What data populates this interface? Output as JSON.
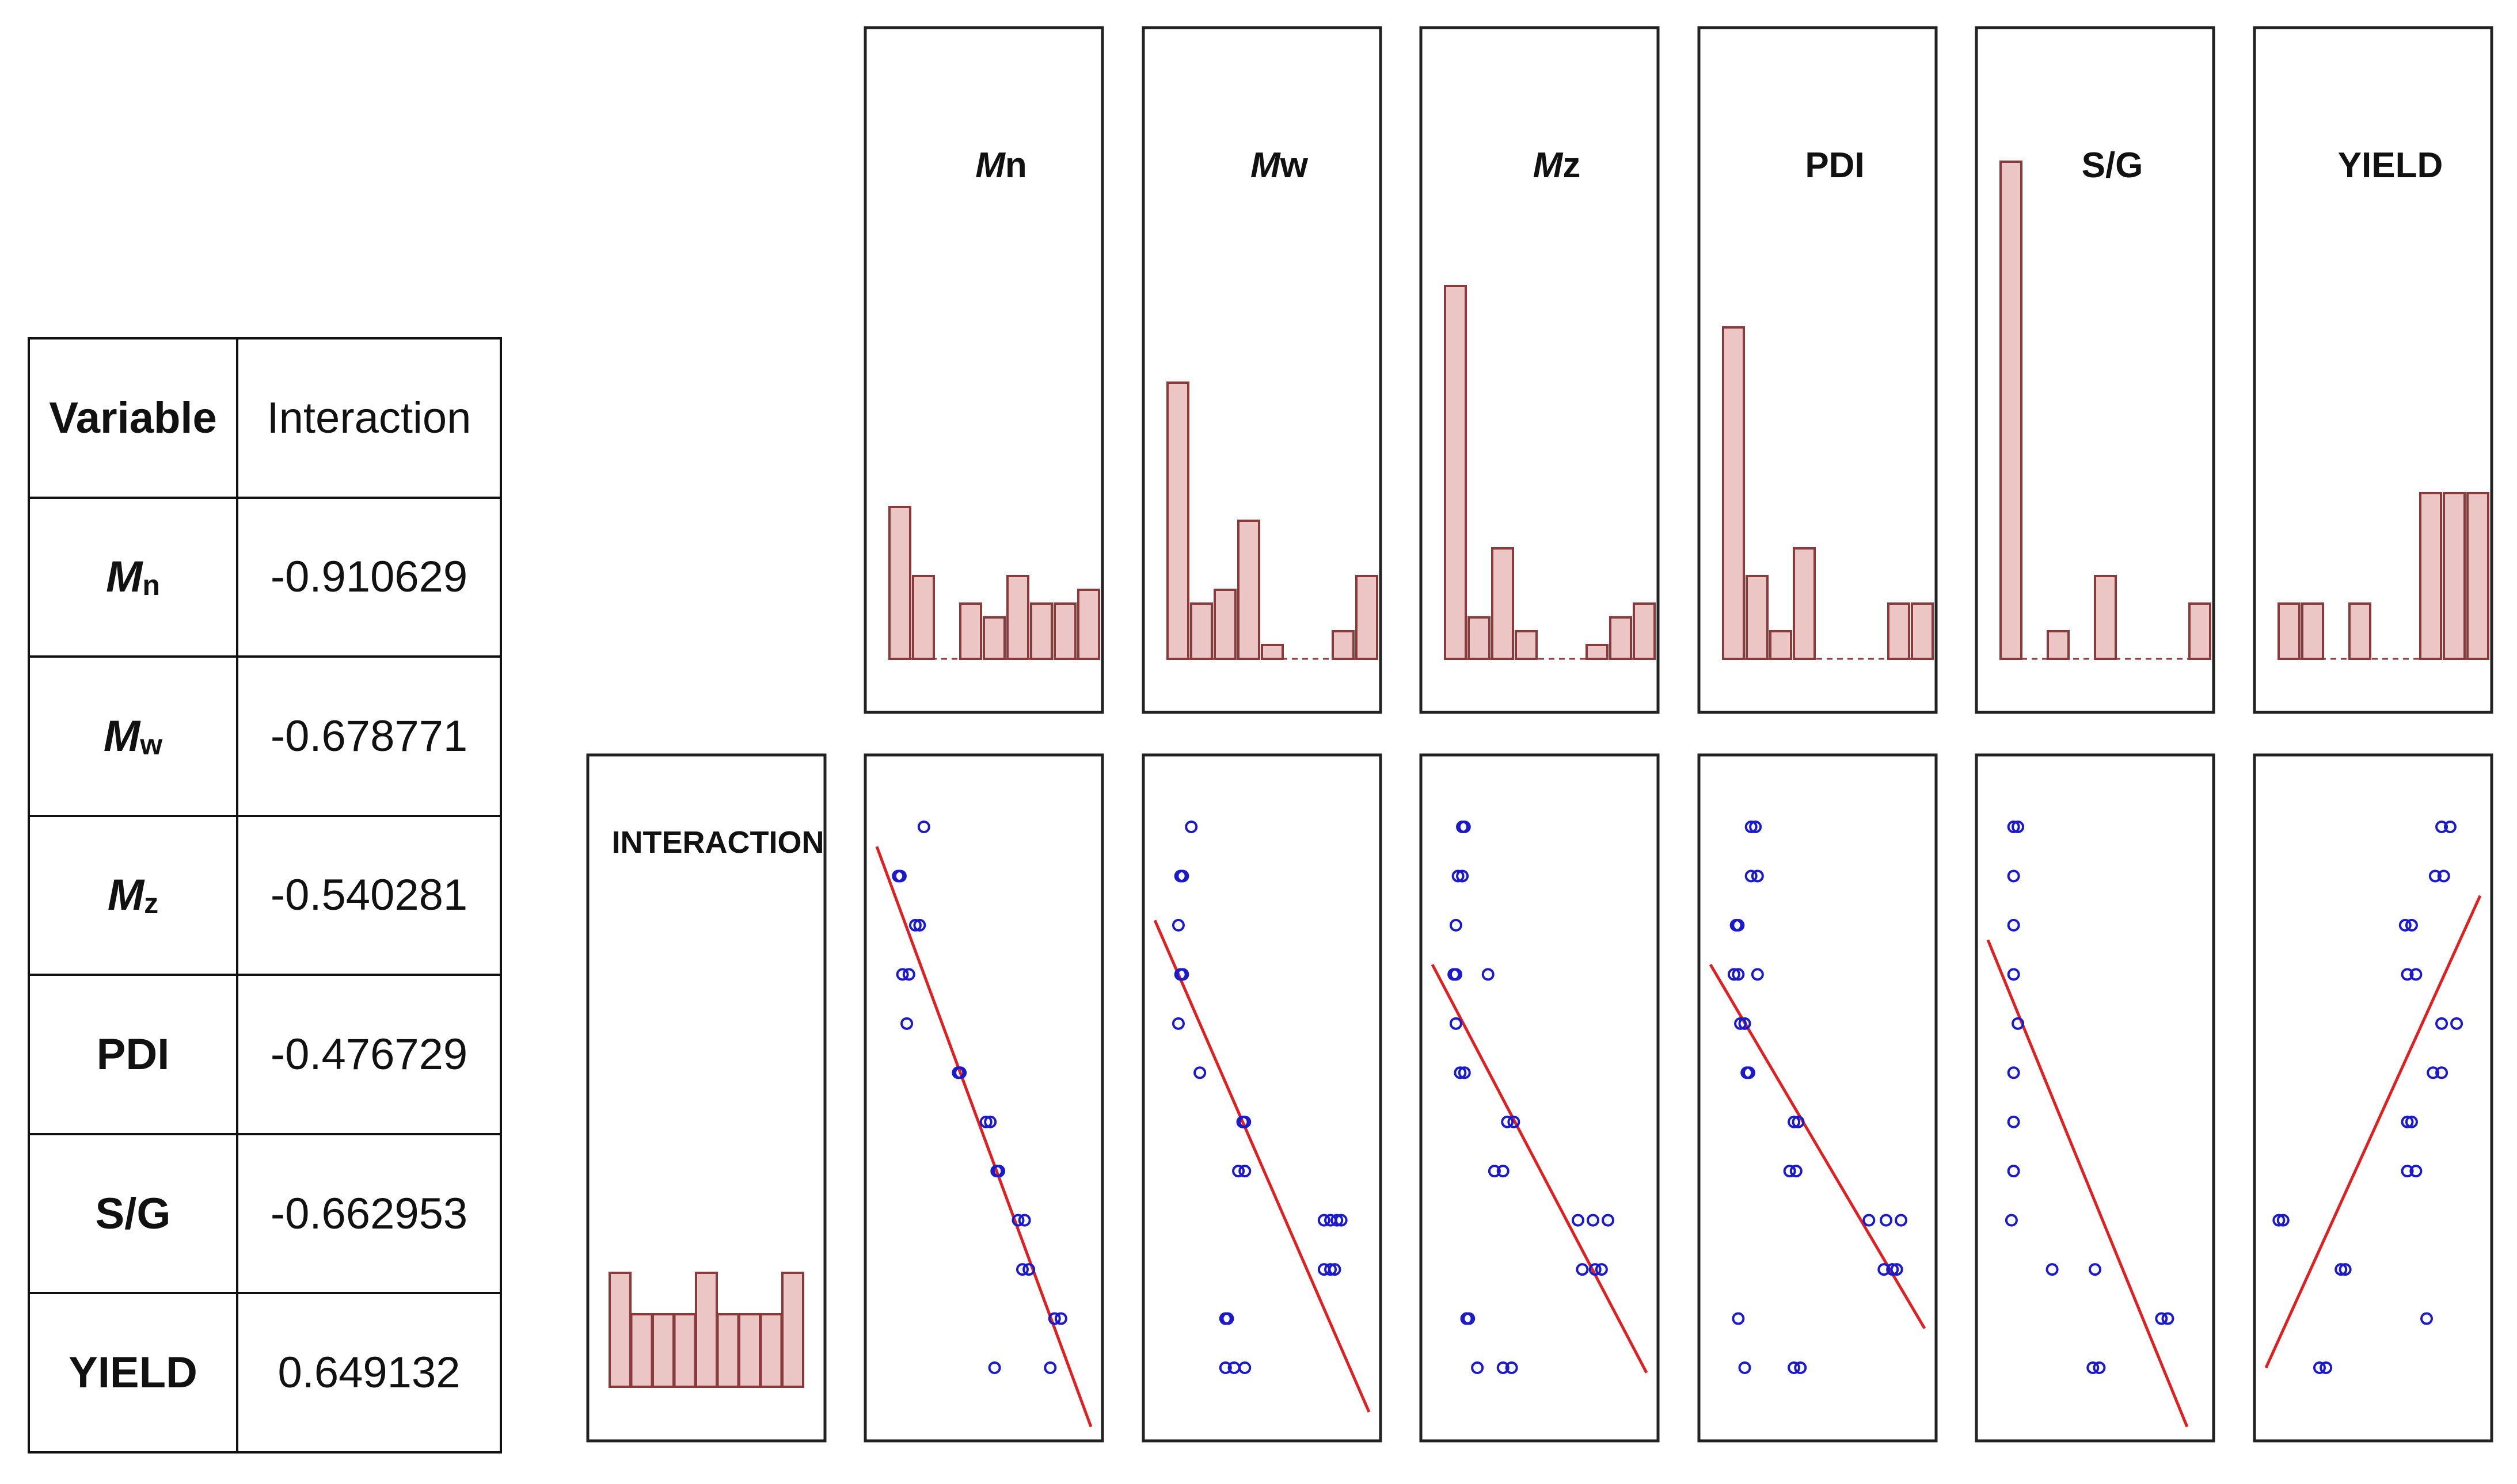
{
  "table": {
    "header": {
      "variable": "Variable",
      "interaction": "Interaction"
    },
    "rows": [
      {
        "prefix": "M",
        "sub": "n",
        "plain": "",
        "value": "-0.910629"
      },
      {
        "prefix": "M",
        "sub": "w",
        "plain": "",
        "value": "-0.678771"
      },
      {
        "prefix": "M",
        "sub": "z",
        "plain": "",
        "value": "-0.540281"
      },
      {
        "prefix": "",
        "sub": "",
        "plain": "PDI",
        "value": "-0.476729"
      },
      {
        "prefix": "",
        "sub": "",
        "plain": "S/G",
        "value": "-0.662953"
      },
      {
        "prefix": "",
        "sub": "",
        "plain": "YIELD",
        "value": "0.649132"
      }
    ]
  },
  "colors": {
    "bar_fill": "#ecc5c5",
    "bar_stroke": "#8a3a3a",
    "point": "#1a1acc",
    "fit_line": "#e02020",
    "panel_border": "#222222"
  },
  "chart_data": [
    {
      "type": "bar",
      "panel": "histograms",
      "series": [
        {
          "title_prefix": "M",
          "title_suffix": "n",
          "values": [
            0.55,
            0.3,
            0,
            0.2,
            0.15,
            0.3,
            0.2,
            0.2,
            0.25
          ]
        },
        {
          "title_prefix": "M",
          "title_suffix": "w",
          "values": [
            1.0,
            0.2,
            0.25,
            0.5,
            0.05,
            0,
            0,
            0.1,
            0.3
          ]
        },
        {
          "title_prefix": "M",
          "title_suffix": "z",
          "values": [
            1.35,
            0.15,
            0.4,
            0.1,
            0,
            0,
            0.05,
            0.15,
            0.2
          ]
        },
        {
          "title_prefix": "",
          "title_suffix": "PDI",
          "values": [
            1.2,
            0.3,
            0.1,
            0.4,
            0,
            0,
            0,
            0.2,
            0.2
          ]
        },
        {
          "title_prefix": "",
          "title_suffix": "S/G",
          "values": [
            1.8,
            0,
            0.1,
            0,
            0.3,
            0,
            0,
            0,
            0.2
          ]
        },
        {
          "title_prefix": "",
          "title_suffix": "YIELD",
          "values": [
            0.2,
            0.2,
            0,
            0.2,
            0,
            0,
            0.6,
            0.6,
            0.6
          ]
        }
      ]
    },
    {
      "type": "bar",
      "panel": "interaction-histogram",
      "label": "INTERACTION",
      "values": [
        0.55,
        0.35,
        0.35,
        0.35,
        0.55,
        0.35,
        0.35,
        0.35,
        0.55
      ]
    },
    {
      "type": "scatter",
      "panel": "scatters",
      "ylim": [
        0,
        11
      ],
      "xlim": [
        0,
        10
      ],
      "series": [
        {
          "name_ref": "Mn",
          "points": [
            [
              2.2,
              11
            ],
            [
              1,
              10
            ],
            [
              1.1,
              10
            ],
            [
              1.8,
              9
            ],
            [
              2,
              9
            ],
            [
              1.2,
              8
            ],
            [
              1.5,
              8
            ],
            [
              1.4,
              7
            ],
            [
              3.8,
              6
            ],
            [
              3.9,
              6
            ],
            [
              5.1,
              5
            ],
            [
              5.3,
              5
            ],
            [
              5.6,
              4
            ],
            [
              5.7,
              4
            ],
            [
              6.6,
              3
            ],
            [
              6.9,
              3
            ],
            [
              6.8,
              2
            ],
            [
              7.1,
              2
            ],
            [
              8.3,
              1
            ],
            [
              8.6,
              1
            ],
            [
              5.5,
              0
            ],
            [
              8.1,
              0
            ]
          ],
          "line": [
            [
              0,
              10.6
            ],
            [
              10,
              -1.2
            ]
          ]
        },
        {
          "name_ref": "Mw",
          "points": [
            [
              1.7,
              11
            ],
            [
              1.2,
              10
            ],
            [
              1.3,
              10
            ],
            [
              1.1,
              9
            ],
            [
              1.2,
              8
            ],
            [
              1.3,
              8
            ],
            [
              1.1,
              7
            ],
            [
              2.1,
              6
            ],
            [
              4.1,
              5
            ],
            [
              4.2,
              5
            ],
            [
              3.9,
              4
            ],
            [
              4.2,
              4
            ],
            [
              7.9,
              3
            ],
            [
              8.2,
              3
            ],
            [
              8.5,
              3
            ],
            [
              8.7,
              3
            ],
            [
              7.9,
              2
            ],
            [
              8.2,
              2
            ],
            [
              8.4,
              2
            ],
            [
              3.3,
              1
            ],
            [
              3.4,
              1
            ],
            [
              3.3,
              0
            ],
            [
              3.7,
              0
            ],
            [
              4.2,
              0
            ]
          ],
          "line": [
            [
              0,
              9.1
            ],
            [
              10,
              -0.9
            ]
          ]
        },
        {
          "name_ref": "Mz",
          "points": [
            [
              1.4,
              11
            ],
            [
              1.5,
              11
            ],
            [
              1.2,
              10
            ],
            [
              1.4,
              10
            ],
            [
              1.1,
              9
            ],
            [
              1,
              8
            ],
            [
              1.1,
              8
            ],
            [
              2.6,
              8
            ],
            [
              1.1,
              7
            ],
            [
              1.3,
              6
            ],
            [
              1.5,
              6
            ],
            [
              3.5,
              5
            ],
            [
              3.8,
              5
            ],
            [
              2.9,
              4
            ],
            [
              3.3,
              4
            ],
            [
              6.8,
              3
            ],
            [
              7.5,
              3
            ],
            [
              8.2,
              3
            ],
            [
              7,
              2
            ],
            [
              7.6,
              2
            ],
            [
              7.9,
              2
            ],
            [
              1.6,
              1
            ],
            [
              1.7,
              1
            ],
            [
              2.1,
              0
            ],
            [
              3.3,
              0
            ],
            [
              3.7,
              0
            ]
          ],
          "line": [
            [
              0,
              8.2
            ],
            [
              10,
              -0.1
            ]
          ]
        },
        {
          "name_ref": "PDI",
          "points": [
            [
              1.9,
              11
            ],
            [
              2.1,
              11
            ],
            [
              1.9,
              10
            ],
            [
              2.2,
              10
            ],
            [
              1.2,
              9
            ],
            [
              1.3,
              9
            ],
            [
              1.1,
              8
            ],
            [
              1.3,
              8
            ],
            [
              2.2,
              8
            ],
            [
              1.4,
              7
            ],
            [
              1.6,
              7
            ],
            [
              1.7,
              6
            ],
            [
              1.8,
              6
            ],
            [
              3.9,
              5
            ],
            [
              4.1,
              5
            ],
            [
              3.7,
              4
            ],
            [
              4,
              4
            ],
            [
              7.4,
              3
            ],
            [
              8.2,
              3
            ],
            [
              8.9,
              3
            ],
            [
              8.1,
              2
            ],
            [
              8.5,
              2
            ],
            [
              8.7,
              2
            ],
            [
              1.3,
              1
            ],
            [
              1.6,
              0
            ],
            [
              3.9,
              0
            ],
            [
              4.2,
              0
            ]
          ],
          "line": [
            [
              0,
              8.2
            ],
            [
              10,
              0.8
            ]
          ]
        },
        {
          "name_ref": "S/G",
          "points": [
            [
              1.2,
              11
            ],
            [
              1.4,
              11
            ],
            [
              1.2,
              10
            ],
            [
              1.2,
              9
            ],
            [
              1.2,
              8
            ],
            [
              1.4,
              7
            ],
            [
              1.2,
              6
            ],
            [
              1.2,
              5
            ],
            [
              1.2,
              4
            ],
            [
              1.1,
              3
            ],
            [
              3,
              2
            ],
            [
              5,
              2
            ],
            [
              8.1,
              1
            ],
            [
              8.4,
              1
            ],
            [
              4.9,
              0
            ],
            [
              5.2,
              0
            ]
          ],
          "line": [
            [
              0,
              8.7
            ],
            [
              9.3,
              -1.2
            ]
          ]
        },
        {
          "name_ref": "YIELD",
          "points": [
            [
              8.2,
              11
            ],
            [
              8.6,
              11
            ],
            [
              7.9,
              10
            ],
            [
              8.3,
              10
            ],
            [
              6.5,
              9
            ],
            [
              6.8,
              9
            ],
            [
              6.6,
              8
            ],
            [
              7,
              8
            ],
            [
              8.2,
              7
            ],
            [
              8.9,
              7
            ],
            [
              7.8,
              6
            ],
            [
              8.2,
              6
            ],
            [
              6.6,
              5
            ],
            [
              6.8,
              5
            ],
            [
              6.6,
              4
            ],
            [
              7,
              4
            ],
            [
              0.6,
              3
            ],
            [
              0.8,
              3
            ],
            [
              3.5,
              2
            ],
            [
              3.7,
              2
            ],
            [
              7.5,
              1
            ],
            [
              2.5,
              0
            ],
            [
              2.8,
              0
            ]
          ],
          "line": [
            [
              0,
              0
            ],
            [
              10,
              9.6
            ]
          ]
        }
      ]
    }
  ]
}
